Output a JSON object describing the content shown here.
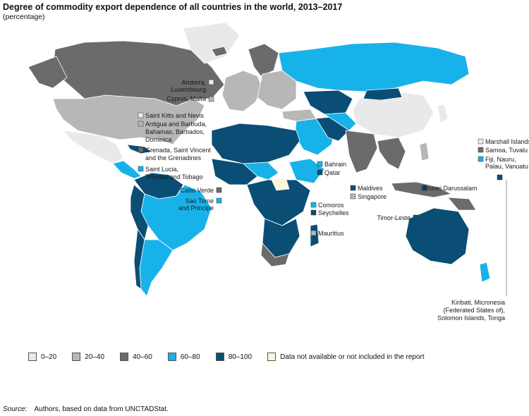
{
  "title": "Degree of commodity export dependence of all countries in the world, 2013–2017",
  "subtitle": "(percentage)",
  "colors": {
    "c0_20": "#e9e9e9",
    "c20_40": "#b7b7b7",
    "c40_60": "#6b6b6b",
    "c60_80": "#18b2ea",
    "c80_100": "#0a4e75",
    "na": "#fbf7d8",
    "ocean": "#ffffff"
  },
  "legend": [
    {
      "label": "0–20",
      "color": "#e9e9e9"
    },
    {
      "label": "20–40",
      "color": "#b7b7b7"
    },
    {
      "label": "40–60",
      "color": "#6b6b6b"
    },
    {
      "label": "60–80",
      "color": "#18b2ea"
    },
    {
      "label": "80–100",
      "color": "#0a4e75"
    },
    {
      "label": "Data not available or not included in the report",
      "color": "#fbf7d8"
    }
  ],
  "annotations": {
    "andorra": [
      "Andorra,",
      "Luxembourg"
    ],
    "cyprus": "Cyprus, Malta",
    "skn": "Saint Kitts and Nevis",
    "antigua": [
      "Antigua and Barbuda,",
      "Bahamas, Barbados,",
      "Dominica"
    ],
    "grenada": [
      "Grenada, Saint Vincent",
      "and the Grenadines"
    ],
    "stlucia": [
      "Saint Lucia,",
      "Trinidad and Tobago"
    ],
    "caboverde": "Cabo Verde",
    "saotome": [
      "Sao Tome",
      "and Principe"
    ],
    "bahrain": "Bahrain",
    "qatar": "Qatar",
    "comoros": "Comoros",
    "seychelles": "Seychelles",
    "mauritius": "Mauritius",
    "maldives": "Maldives",
    "singapore": "Singapore",
    "brunei": "Brunei Darussalam",
    "timor": "Timor-Leste",
    "marshall": "Marshall Islands",
    "samoa": "Samoa, Tuvalu",
    "fiji": [
      "Fiji, Nauru,",
      "Palau, Vanuatu"
    ],
    "kiribati": [
      "Kiribati, Micronesia",
      "(Federated States of),",
      "Solomon Islands, Tonga"
    ]
  },
  "source_label": "Source:",
  "source_text": "Authors, based on data from UNCTADStat."
}
